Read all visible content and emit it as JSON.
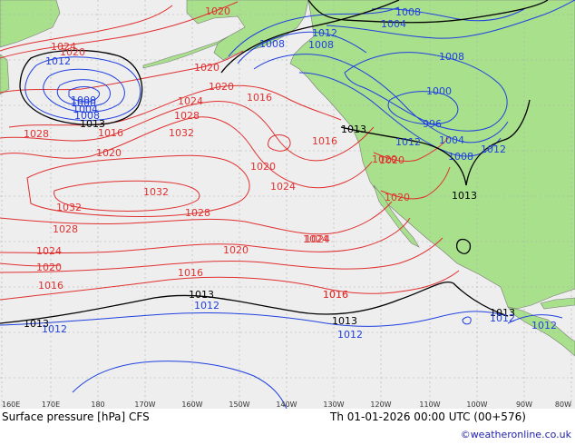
{
  "colors": {
    "ocean": "#eeeeee",
    "land": "#a8e08c",
    "grid": "#b0b0b0",
    "isobar_high": "#e03030",
    "isobar_low": "#2040e0",
    "isobar_ref": "#000000",
    "credit": "#2222aa"
  },
  "map": {
    "lon_ticks": [
      "160E",
      "170E",
      "180",
      "170W",
      "160W",
      "150W",
      "140W",
      "130W",
      "120W",
      "110W",
      "100W",
      "90W",
      "80W"
    ],
    "isobar_labels": [
      {
        "text": "1020",
        "kind": "high"
      },
      {
        "text": "1024",
        "kind": "high"
      },
      {
        "text": "1020",
        "kind": "high"
      },
      {
        "text": "1012",
        "kind": "low"
      },
      {
        "text": "1000",
        "kind": "low"
      },
      {
        "text": "1004",
        "kind": "low"
      },
      {
        "text": "1008",
        "kind": "low"
      },
      {
        "text": "1013",
        "kind": "ref"
      },
      {
        "text": "1016",
        "kind": "high"
      },
      {
        "text": "1024",
        "kind": "high"
      },
      {
        "text": "1028",
        "kind": "high"
      },
      {
        "text": "1020",
        "kind": "high"
      },
      {
        "text": "1028",
        "kind": "high"
      },
      {
        "text": "1032",
        "kind": "high"
      },
      {
        "text": "1032",
        "kind": "high"
      },
      {
        "text": "1032",
        "kind": "high"
      },
      {
        "text": "1028",
        "kind": "high"
      },
      {
        "text": "1028",
        "kind": "high"
      },
      {
        "text": "1024",
        "kind": "high"
      },
      {
        "text": "1020",
        "kind": "high"
      },
      {
        "text": "1016",
        "kind": "high"
      },
      {
        "text": "1020",
        "kind": "high"
      },
      {
        "text": "1020",
        "kind": "high"
      },
      {
        "text": "1016",
        "kind": "high"
      },
      {
        "text": "1016",
        "kind": "high"
      },
      {
        "text": "1020",
        "kind": "high"
      },
      {
        "text": "1024",
        "kind": "high"
      },
      {
        "text": "1024",
        "kind": "high"
      },
      {
        "text": "1020",
        "kind": "high"
      },
      {
        "text": "1016",
        "kind": "high"
      },
      {
        "text": "1013",
        "kind": "ref"
      },
      {
        "text": "1012",
        "kind": "low"
      },
      {
        "text": "1013",
        "kind": "ref"
      },
      {
        "text": "1012",
        "kind": "low"
      },
      {
        "text": "1013",
        "kind": "ref"
      },
      {
        "text": "1012",
        "kind": "low"
      },
      {
        "text": "1016",
        "kind": "high"
      },
      {
        "text": "1008",
        "kind": "low"
      },
      {
        "text": "1008",
        "kind": "low"
      },
      {
        "text": "1020",
        "kind": "high"
      },
      {
        "text": "1012",
        "kind": "low"
      },
      {
        "text": "1008",
        "kind": "low"
      },
      {
        "text": "1004",
        "kind": "low"
      },
      {
        "text": "1008",
        "kind": "low"
      },
      {
        "text": "1000",
        "kind": "low"
      },
      {
        "text": "1000",
        "kind": "low"
      },
      {
        "text": "996",
        "kind": "low"
      },
      {
        "text": "1004",
        "kind": "low"
      },
      {
        "text": "1008",
        "kind": "low"
      },
      {
        "text": "1012",
        "kind": "low"
      },
      {
        "text": "1012",
        "kind": "low"
      },
      {
        "text": "1013",
        "kind": "ref"
      },
      {
        "text": "1020",
        "kind": "high"
      },
      {
        "text": "1020",
        "kind": "high"
      },
      {
        "text": "1013",
        "kind": "ref"
      },
      {
        "text": "1024",
        "kind": "high"
      },
      {
        "text": "1016",
        "kind": "high"
      },
      {
        "text": "1013",
        "kind": "ref"
      },
      {
        "text": "1012",
        "kind": "low"
      },
      {
        "text": "1012",
        "kind": "low"
      }
    ]
  },
  "footer": {
    "title": "Surface pressure [hPa] CFS",
    "valid": "Th 01-01-2026 00:00 UTC (00+576)",
    "credit": "©weatheronline.co.uk"
  }
}
